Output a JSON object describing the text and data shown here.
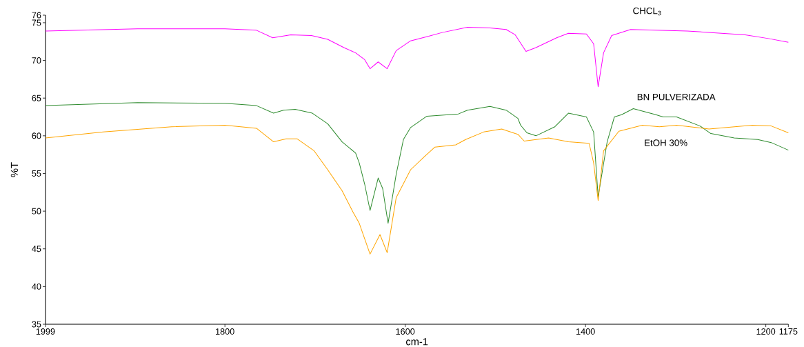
{
  "chart_data": {
    "type": "line",
    "xlabel": "cm-1",
    "ylabel": "%T",
    "xlim": [
      1999,
      1175
    ],
    "xticks": [
      1999,
      1800,
      1600,
      1400,
      1200,
      1175
    ],
    "ylim": [
      35,
      76
    ],
    "yticks": [
      35,
      40,
      45,
      50,
      55,
      60,
      65,
      70,
      75,
      76
    ],
    "grid": false,
    "legend": false,
    "series": [
      {
        "name": "CHCL$_{3}$",
        "color": "#ff00ff",
        "x": [
          1999,
          1897,
          1800,
          1765,
          1747,
          1727,
          1704,
          1686,
          1668,
          1655,
          1645,
          1639,
          1630,
          1620,
          1610,
          1594,
          1574,
          1559,
          1531,
          1506,
          1488,
          1478,
          1466,
          1455,
          1432,
          1419,
          1399,
          1391,
          1386,
          1380,
          1371,
          1350,
          1287,
          1223,
          1197,
          1175
        ],
        "values": [
          73.9,
          74.2,
          74.2,
          74.0,
          73.0,
          73.4,
          73.3,
          72.8,
          71.7,
          71.0,
          70.1,
          68.9,
          69.8,
          68.9,
          71.3,
          72.6,
          73.2,
          73.7,
          74.4,
          74.3,
          74.1,
          73.4,
          71.2,
          71.7,
          73.0,
          73.6,
          73.5,
          72.2,
          66.5,
          71.0,
          73.3,
          74.1,
          73.9,
          73.4,
          72.9,
          72.4
        ]
      },
      {
        "name": "BN PULVERIZADA",
        "color": "#2e8b2e",
        "x": [
          1999,
          1897,
          1800,
          1765,
          1746,
          1735,
          1722,
          1703,
          1686,
          1670,
          1655,
          1651,
          1645,
          1639,
          1630,
          1625,
          1619,
          1610,
          1602,
          1594,
          1576,
          1541,
          1531,
          1506,
          1488,
          1475,
          1472,
          1465,
          1455,
          1434,
          1419,
          1399,
          1391,
          1386,
          1376,
          1368,
          1360,
          1347,
          1322,
          1314,
          1299,
          1273,
          1261,
          1235,
          1209,
          1194,
          1175
        ],
        "values": [
          64.0,
          64.4,
          64.3,
          64.0,
          63.0,
          63.4,
          63.5,
          63.0,
          61.6,
          59.2,
          57.7,
          56.4,
          53.6,
          50.1,
          54.4,
          53.0,
          48.4,
          54.9,
          59.5,
          61.1,
          62.6,
          62.9,
          63.4,
          63.9,
          63.4,
          62.3,
          61.4,
          60.4,
          60.0,
          61.2,
          63.0,
          62.5,
          60.5,
          51.9,
          59.2,
          62.5,
          62.8,
          63.6,
          62.8,
          62.5,
          62.5,
          61.3,
          60.3,
          59.7,
          59.5,
          59.1,
          58.1
        ]
      },
      {
        "name": "EtOH 30%",
        "color": "#ffa500",
        "x": [
          1999,
          1935,
          1859,
          1800,
          1765,
          1746,
          1732,
          1720,
          1701,
          1686,
          1670,
          1658,
          1651,
          1639,
          1628,
          1620,
          1610,
          1594,
          1579,
          1567,
          1544,
          1533,
          1513,
          1493,
          1478,
          1475,
          1468,
          1441,
          1419,
          1396,
          1391,
          1386,
          1380,
          1363,
          1337,
          1318,
          1299,
          1263,
          1215,
          1194,
          1175
        ],
        "values": [
          59.7,
          60.5,
          61.2,
          61.4,
          61.0,
          59.2,
          59.6,
          59.6,
          58.0,
          55.5,
          52.7,
          49.9,
          48.4,
          44.3,
          46.9,
          44.5,
          51.8,
          55.5,
          57.2,
          58.5,
          58.8,
          59.5,
          60.5,
          60.9,
          60.3,
          60.2,
          59.3,
          59.7,
          59.2,
          59.0,
          56.4,
          51.4,
          58.0,
          60.6,
          61.4,
          61.2,
          61.4,
          60.9,
          61.4,
          61.3,
          60.4
        ]
      }
    ]
  }
}
